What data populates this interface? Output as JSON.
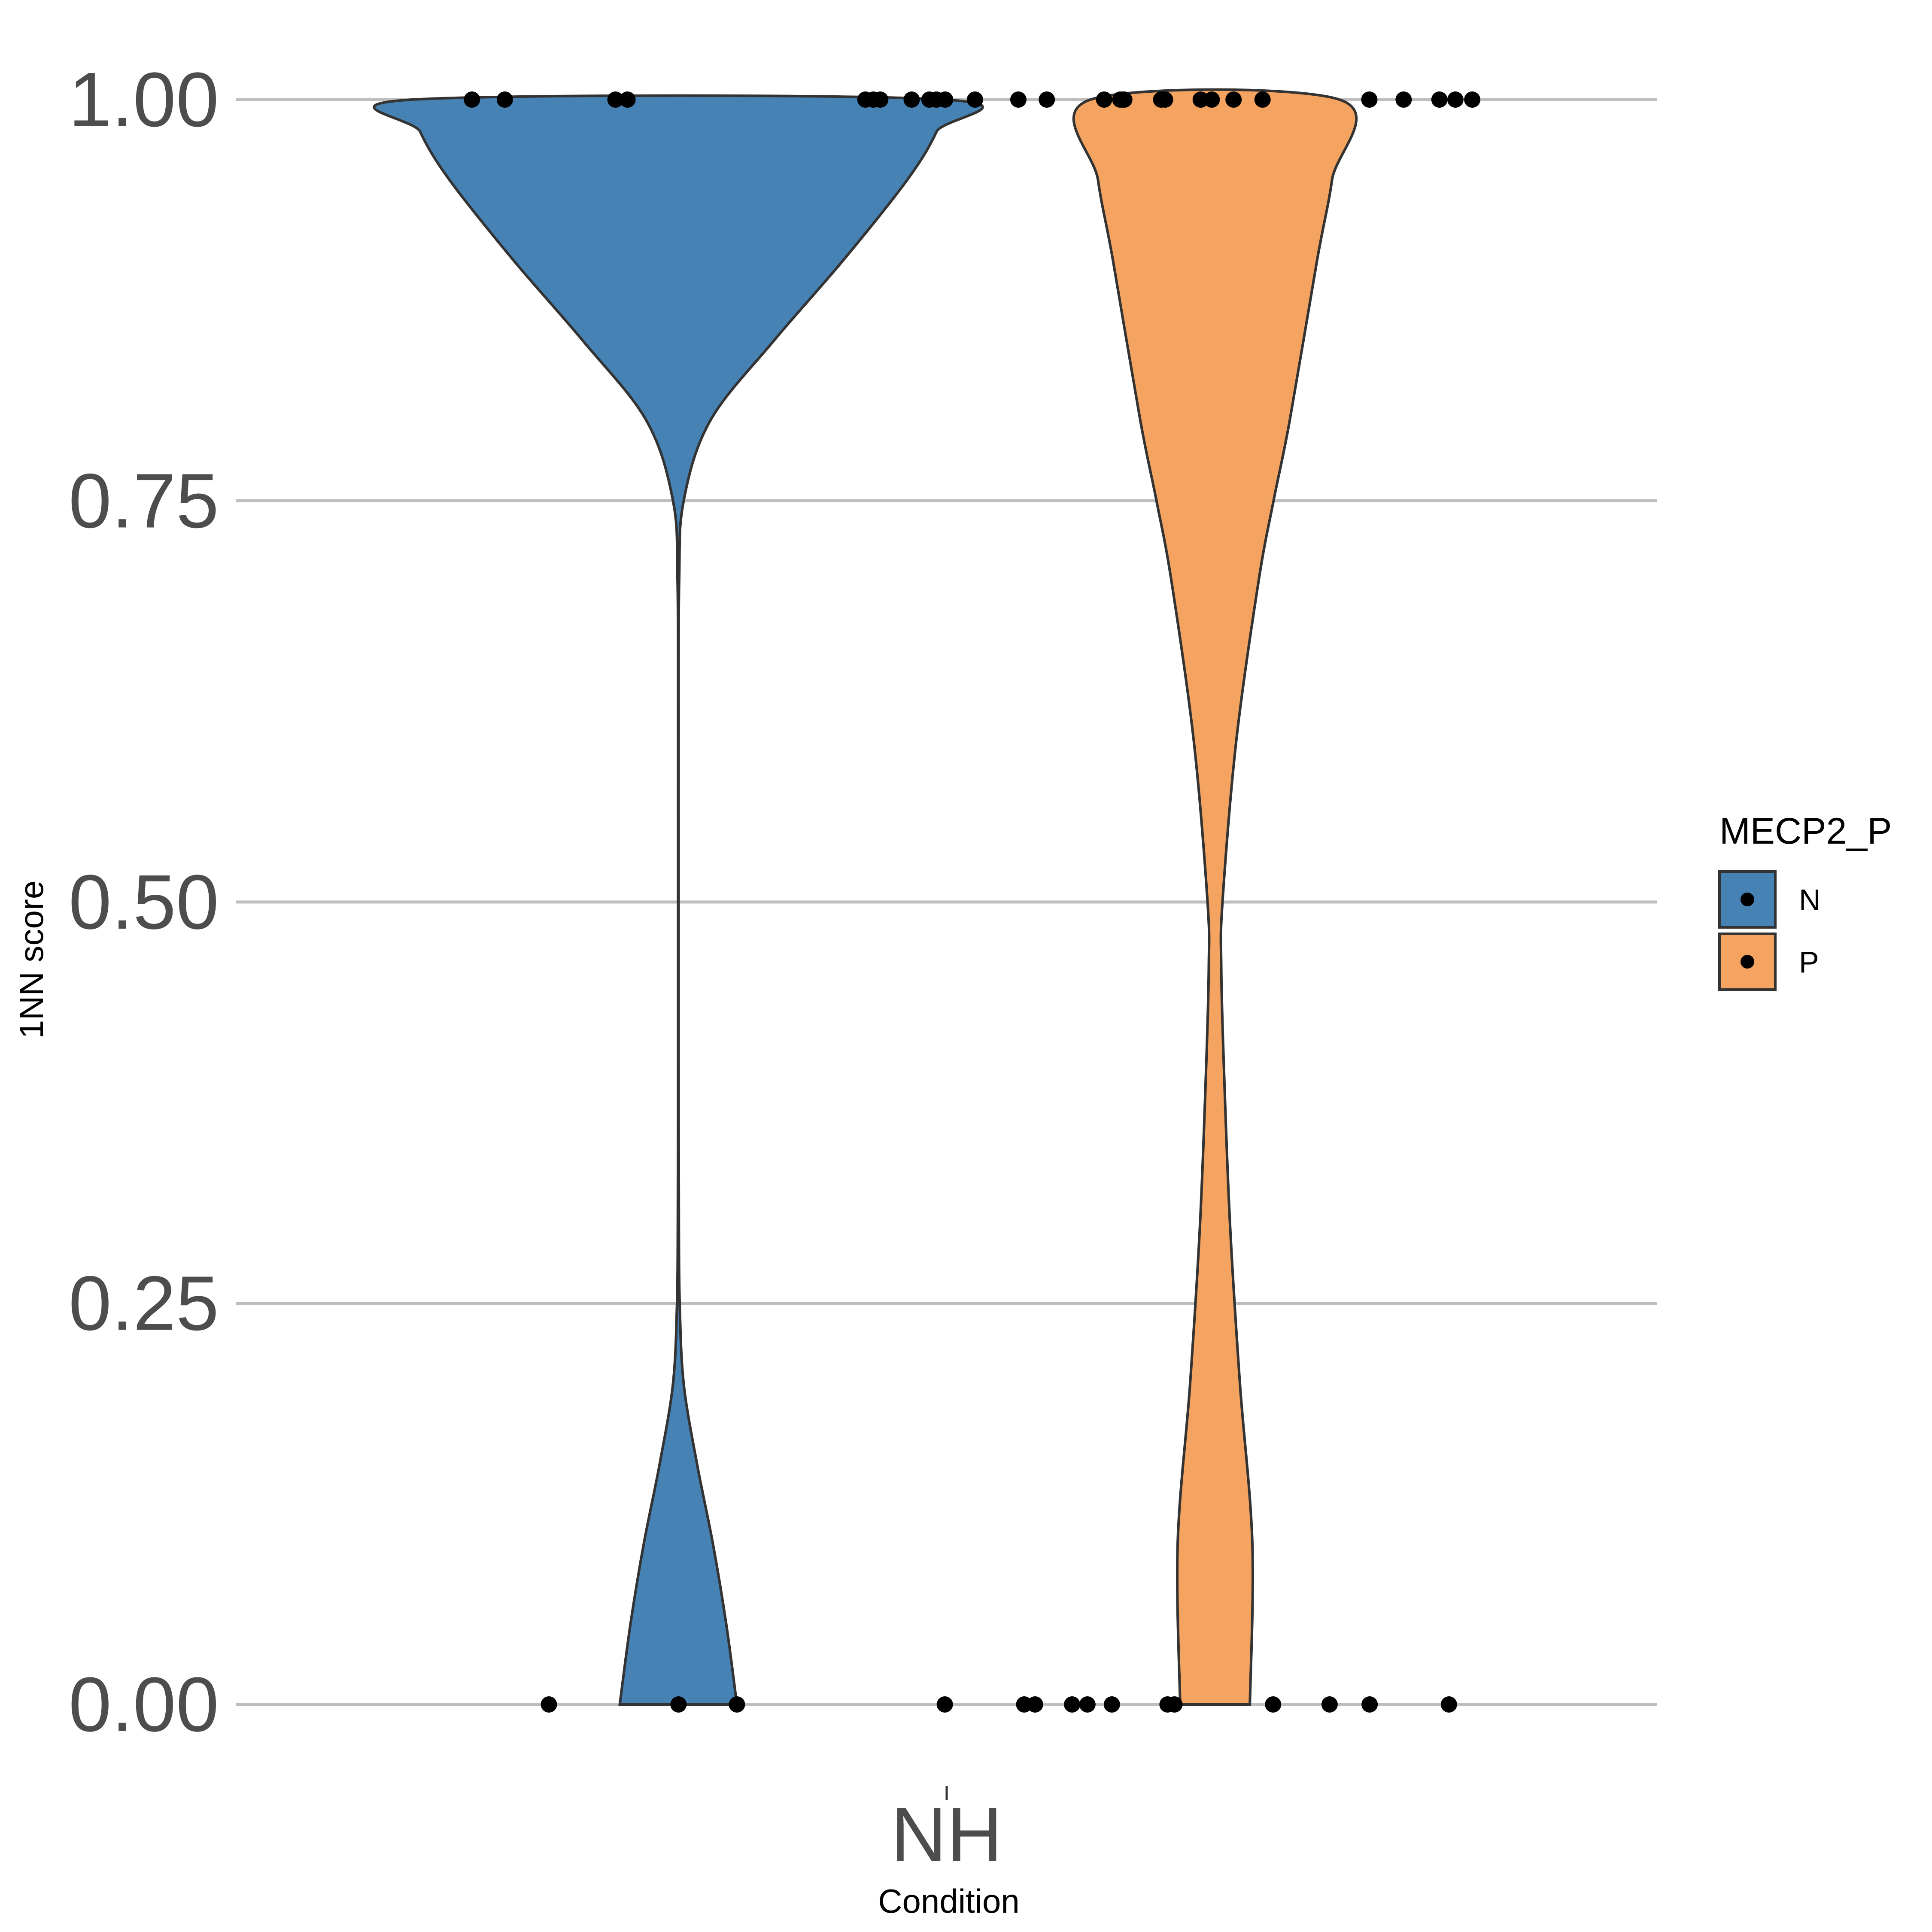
{
  "chart_data": {
    "type": "violin",
    "xlabel": "Condition",
    "ylabel": "1NN score",
    "ylim": [
      0,
      1
    ],
    "yticks": [
      "0.00",
      "0.25",
      "0.50",
      "0.75",
      "1.00"
    ],
    "ytick_values": [
      0,
      0.25,
      0.5,
      0.75,
      1.0
    ],
    "categories": [
      "NH"
    ],
    "grid": "horizontal",
    "legend": {
      "title": "MECP2_P",
      "placement": "right",
      "entries": [
        {
          "label": "N",
          "color": "#4682b4"
        },
        {
          "label": "P",
          "color": "#f4a460"
        }
      ]
    },
    "series": [
      {
        "name": "N",
        "color": "#4682b4",
        "density_profile": [
          [
            0.0,
            0.22
          ],
          [
            0.05,
            0.18
          ],
          [
            0.1,
            0.13
          ],
          [
            0.15,
            0.07
          ],
          [
            0.2,
            0.02
          ],
          [
            0.25,
            0.005
          ],
          [
            0.3,
            0.002
          ],
          [
            0.4,
            0.001
          ],
          [
            0.5,
            0.001
          ],
          [
            0.6,
            0.001
          ],
          [
            0.7,
            0.003
          ],
          [
            0.75,
            0.02
          ],
          [
            0.8,
            0.12
          ],
          [
            0.85,
            0.36
          ],
          [
            0.9,
            0.62
          ],
          [
            0.95,
            0.86
          ],
          [
            0.98,
            0.97
          ],
          [
            1.0,
            1.0
          ]
        ],
        "points": [
          {
            "y": 1.0,
            "n": 7
          },
          {
            "y": 0.0,
            "n": 3
          }
        ]
      },
      {
        "name": "P",
        "color": "#f4a460",
        "density_profile": [
          [
            0.0,
            0.28
          ],
          [
            0.1,
            0.3
          ],
          [
            0.2,
            0.2
          ],
          [
            0.3,
            0.12
          ],
          [
            0.4,
            0.07
          ],
          [
            0.46,
            0.05
          ],
          [
            0.5,
            0.06
          ],
          [
            0.6,
            0.17
          ],
          [
            0.7,
            0.35
          ],
          [
            0.75,
            0.47
          ],
          [
            0.8,
            0.6
          ],
          [
            0.9,
            0.82
          ],
          [
            0.95,
            0.94
          ],
          [
            1.0,
            1.0
          ]
        ],
        "points": [
          {
            "y": 1.0,
            "n": 22
          },
          {
            "y": 0.0,
            "n": 12
          }
        ]
      }
    ]
  }
}
